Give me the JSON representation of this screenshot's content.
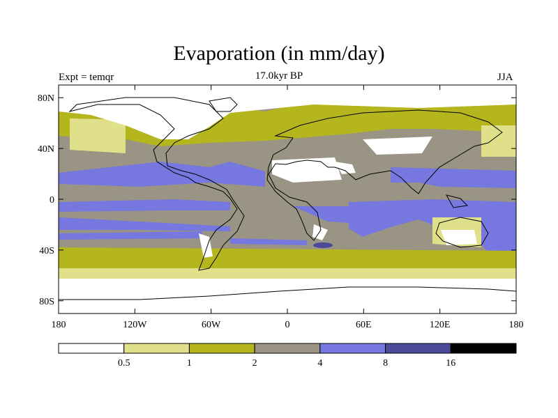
{
  "header": {
    "title": "Evaporation (in mm/day)",
    "subtitle": "17.0kyr BP",
    "left_label": "Expt = temqr",
    "right_label": "JJA"
  },
  "map": {
    "projection": "cylindrical-equidistant",
    "lon_range": [
      -180,
      180
    ],
    "lat_range": [
      -90,
      90
    ],
    "lat_tick_labels": [
      {
        "lat": 80,
        "label": "80N"
      },
      {
        "lat": 40,
        "label": "40N"
      },
      {
        "lat": 0,
        "label": "0"
      },
      {
        "lat": -40,
        "label": "40S"
      },
      {
        "lat": -80,
        "label": "80S"
      }
    ],
    "lon_tick_labels": [
      {
        "lon": -180,
        "label": "180"
      },
      {
        "lon": -120,
        "label": "120W"
      },
      {
        "lon": -60,
        "label": "60W"
      },
      {
        "lon": 0,
        "label": "0"
      },
      {
        "lon": 60,
        "label": "60E"
      },
      {
        "lon": 120,
        "label": "120E"
      },
      {
        "lon": 180,
        "label": "180"
      }
    ]
  },
  "legend": {
    "labels": [
      "0.5",
      "1",
      "2",
      "4",
      "8",
      "16"
    ],
    "colors": [
      "#ffffff",
      "#e0e08a",
      "#b5b51e",
      "#999483",
      "#7777e0",
      "#4a4a99",
      "#000000"
    ]
  }
}
